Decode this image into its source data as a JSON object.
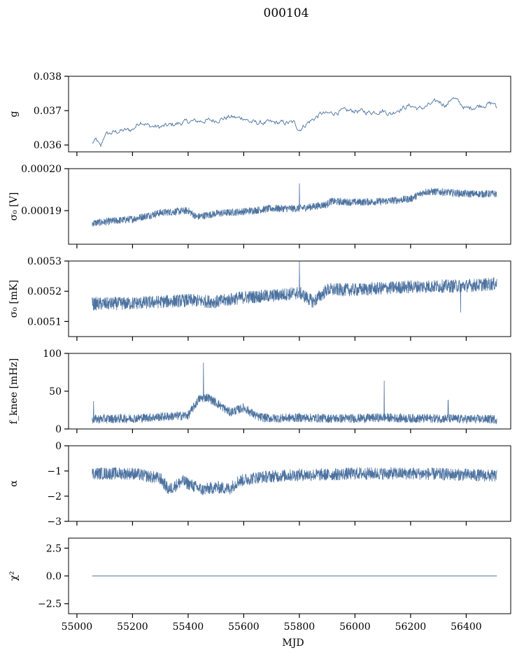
{
  "figure_title": "000104",
  "xlabel": "MJD",
  "series_color": "#4c72a0",
  "chart_data": [
    {
      "type": "line",
      "ylabel": "g",
      "ylim": [
        0.0358,
        0.038
      ],
      "yticks": [
        0.036,
        0.037,
        0.038
      ],
      "ytick_labels": [
        "0.036",
        "0.037",
        "0.038"
      ],
      "xlim": [
        54970,
        56560
      ],
      "xticks": [
        55000,
        55200,
        55400,
        55600,
        55800,
        56000,
        56200,
        56400
      ],
      "x": [
        55055,
        55070,
        55085,
        55100,
        55150,
        55200,
        55230,
        55260,
        55300,
        55350,
        55400,
        55450,
        55500,
        55550,
        55580,
        55600,
        55620,
        55650,
        55700,
        55750,
        55780,
        55800,
        55830,
        55850,
        55880,
        55900,
        55950,
        56000,
        56050,
        56100,
        56130,
        56150,
        56200,
        56230,
        56250,
        56300,
        56330,
        56350,
        56400,
        56450,
        56500,
        56510
      ],
      "y": [
        0.03605,
        0.03615,
        0.03592,
        0.0363,
        0.0364,
        0.03645,
        0.0367,
        0.03655,
        0.03652,
        0.0366,
        0.03668,
        0.0367,
        0.03672,
        0.03682,
        0.03678,
        0.0368,
        0.03668,
        0.03664,
        0.03665,
        0.03664,
        0.03665,
        0.03645,
        0.03665,
        0.03675,
        0.03692,
        0.0369,
        0.03698,
        0.037,
        0.03695,
        0.037,
        0.0369,
        0.03702,
        0.03715,
        0.03705,
        0.0371,
        0.03728,
        0.03715,
        0.0374,
        0.03705,
        0.03715,
        0.03722,
        0.03705
      ],
      "noise_amplitude": 6e-05,
      "density": "sparse"
    },
    {
      "type": "line",
      "ylabel": "σ₀ [V]",
      "ylim": [
        0.000182,
        0.0002
      ],
      "yticks": [
        0.00019,
        0.0002
      ],
      "ytick_labels": [
        "0.00019",
        "0.00020"
      ],
      "xlim": [
        54970,
        56560
      ],
      "xticks": [
        55000,
        55200,
        55400,
        55600,
        55800,
        56000,
        56200,
        56400
      ],
      "x": [
        55055,
        55200,
        55300,
        55400,
        55430,
        55500,
        55600,
        55700,
        55800,
        55900,
        55910,
        56000,
        56100,
        56200,
        56250,
        56300,
        56400,
        56510
      ],
      "y": [
        0.000187,
        0.000188,
        0.0001895,
        0.00019,
        0.0001885,
        0.0001893,
        0.0001898,
        0.0001905,
        0.0001905,
        0.0001915,
        0.0001922,
        0.000192,
        0.0001922,
        0.0001928,
        0.0001945,
        0.0001945,
        0.000194,
        0.000194
      ],
      "noise_amplitude": 9e-07,
      "density": "dense",
      "spikes": [
        {
          "x": 55800,
          "y": 0.0001965
        }
      ]
    },
    {
      "type": "line",
      "ylabel": "σ₀ [mK]",
      "ylim": [
        0.00505,
        0.0053
      ],
      "yticks": [
        0.0051,
        0.0052,
        0.0053
      ],
      "ytick_labels": [
        "0.0051",
        "0.0052",
        "0.0053"
      ],
      "xlim": [
        54970,
        56560
      ],
      "xticks": [
        55000,
        55200,
        55400,
        55600,
        55800,
        56000,
        56200,
        56400
      ],
      "x": [
        55055,
        55200,
        55400,
        55500,
        55600,
        55700,
        55800,
        55850,
        55900,
        56000,
        56200,
        56400,
        56510
      ],
      "y": [
        0.005158,
        0.00516,
        0.00517,
        0.005165,
        0.00518,
        0.005185,
        0.005195,
        0.005165,
        0.005205,
        0.005205,
        0.005215,
        0.005218,
        0.005225
      ],
      "noise_amplitude": 2.2e-05,
      "density": "dense",
      "spikes": [
        {
          "x": 55800,
          "y": 0.0053
        },
        {
          "x": 56380,
          "y": 0.00513
        }
      ]
    },
    {
      "type": "line",
      "ylabel": "f_knee [mHz]",
      "ylim": [
        0,
        100
      ],
      "yticks": [
        0,
        50,
        100
      ],
      "ytick_labels": [
        "0",
        "50",
        "100"
      ],
      "xlim": [
        54970,
        56560
      ],
      "xticks": [
        55000,
        55200,
        55400,
        55600,
        55800,
        56000,
        56200,
        56400
      ],
      "x": [
        55055,
        55200,
        55300,
        55400,
        55440,
        55470,
        55500,
        55550,
        55600,
        55650,
        55700,
        55800,
        55900,
        55910,
        56000,
        56100,
        56200,
        56300,
        56400,
        56510
      ],
      "y": [
        13,
        14,
        16,
        18,
        40,
        42,
        35,
        22,
        28,
        16,
        14,
        15,
        14,
        14,
        14,
        15,
        14,
        14,
        13,
        13
      ],
      "noise_amplitude": 6,
      "density": "dense",
      "spikes": [
        {
          "x": 55060,
          "y": 37
        },
        {
          "x": 55455,
          "y": 88
        },
        {
          "x": 56105,
          "y": 64
        },
        {
          "x": 56335,
          "y": 38
        }
      ]
    },
    {
      "type": "line",
      "ylabel": "α",
      "ylim": [
        -3,
        0
      ],
      "yticks": [
        -3,
        -2,
        -1,
        0
      ],
      "ytick_labels": [
        "−3",
        "−2",
        "−1",
        "0"
      ],
      "xlim": [
        54970,
        56560
      ],
      "xticks": [
        55000,
        55200,
        55400,
        55600,
        55800,
        56000,
        56200,
        56400
      ],
      "x": [
        55055,
        55200,
        55300,
        55330,
        55380,
        55450,
        55500,
        55550,
        55580,
        55650,
        55800,
        55900,
        56000,
        56200,
        56400,
        56510
      ],
      "y": [
        -1.1,
        -1.1,
        -1.3,
        -1.75,
        -1.4,
        -1.75,
        -1.65,
        -1.7,
        -1.4,
        -1.25,
        -1.15,
        -1.15,
        -1.1,
        -1.1,
        -1.15,
        -1.2
      ],
      "noise_amplitude": 0.25,
      "density": "dense"
    },
    {
      "type": "line",
      "ylabel": "χ²",
      "ylim": [
        -3.4,
        3.4
      ],
      "yticks": [
        -2.5,
        0.0,
        2.5
      ],
      "ytick_labels": [
        "−2.5",
        "0.0",
        "2.5"
      ],
      "xlim": [
        54970,
        56560
      ],
      "xticks": [
        55000,
        55200,
        55400,
        55600,
        55800,
        56000,
        56200,
        56400
      ],
      "xtick_labels": [
        "55000",
        "55200",
        "55400",
        "55600",
        "55800",
        "56000",
        "56200",
        "56400"
      ],
      "x": [
        55055,
        56510
      ],
      "y": [
        0.0,
        0.0
      ],
      "noise_amplitude": 0,
      "density": "flat"
    }
  ]
}
